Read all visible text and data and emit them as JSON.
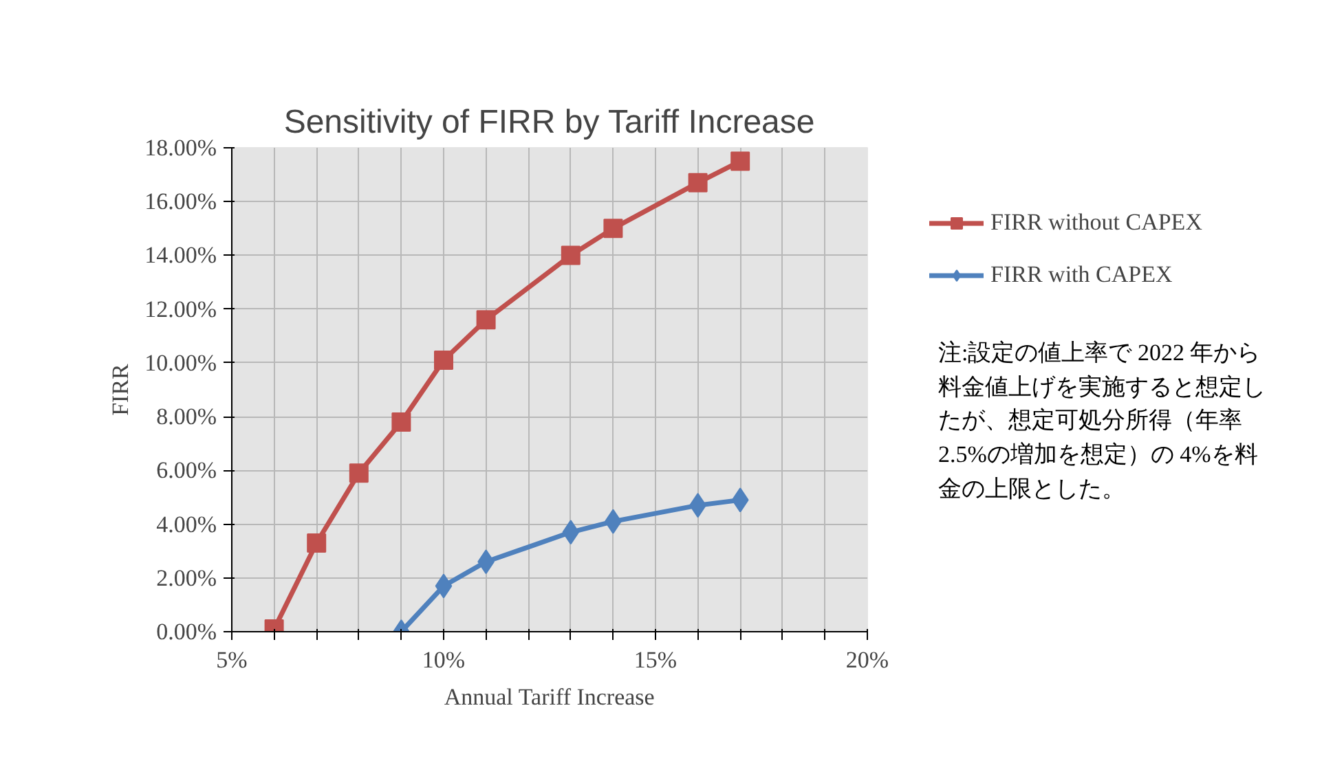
{
  "chart_data": {
    "type": "line",
    "title": "Sensitivity of FIRR by Tariff Increase",
    "xlabel": "Annual Tariff Increase",
    "ylabel": "FIRR",
    "series": [
      {
        "name": "FIRR without CAPEX",
        "color": "#c0504d",
        "marker": "square",
        "x": [
          6,
          7,
          8,
          9,
          10,
          11,
          13,
          14,
          16,
          17
        ],
        "values": [
          0.1,
          3.3,
          5.9,
          7.8,
          10.1,
          11.6,
          14.0,
          15.0,
          16.7,
          17.5
        ]
      },
      {
        "name": "FIRR with CAPEX",
        "color": "#4f81bd",
        "marker": "diamond",
        "x": [
          9,
          10,
          11,
          13,
          14,
          16,
          17
        ],
        "values": [
          0.0,
          1.7,
          2.6,
          3.7,
          4.1,
          4.7,
          4.9
        ]
      }
    ],
    "xlim": [
      5,
      20
    ],
    "xticks": [
      {
        "value": 5,
        "label": "5%"
      },
      {
        "value": 6,
        "label": null
      },
      {
        "value": 7,
        "label": null
      },
      {
        "value": 8,
        "label": null
      },
      {
        "value": 9,
        "label": null
      },
      {
        "value": 10,
        "label": "10%"
      },
      {
        "value": 11,
        "label": null
      },
      {
        "value": 12,
        "label": null
      },
      {
        "value": 13,
        "label": null
      },
      {
        "value": 14,
        "label": null
      },
      {
        "value": 15,
        "label": "15%"
      },
      {
        "value": 16,
        "label": null
      },
      {
        "value": 17,
        "label": null
      },
      {
        "value": 18,
        "label": null
      },
      {
        "value": 19,
        "label": null
      },
      {
        "value": 20,
        "label": "20%"
      }
    ],
    "ylim": [
      0,
      18
    ],
    "yticks": [
      {
        "value": 0,
        "label": "0.00%"
      },
      {
        "value": 2,
        "label": "2.00%"
      },
      {
        "value": 4,
        "label": "4.00%"
      },
      {
        "value": 6,
        "label": "6.00%"
      },
      {
        "value": 8,
        "label": "8.00%"
      },
      {
        "value": 10,
        "label": "10.00%"
      },
      {
        "value": 12,
        "label": "12.00%"
      },
      {
        "value": 14,
        "label": "14.00%"
      },
      {
        "value": 16,
        "label": "16.00%"
      },
      {
        "value": 18,
        "label": "18.00%"
      }
    ],
    "grid": true,
    "legend": "right",
    "line_style": "solid",
    "annotations": [
      "注:設定の値上率で 2022 年から料金値上げを実施すると想定したが、想定可処分所得（年率 2.5%の増加を想定）の 4%を料金の上限とした。"
    ]
  }
}
